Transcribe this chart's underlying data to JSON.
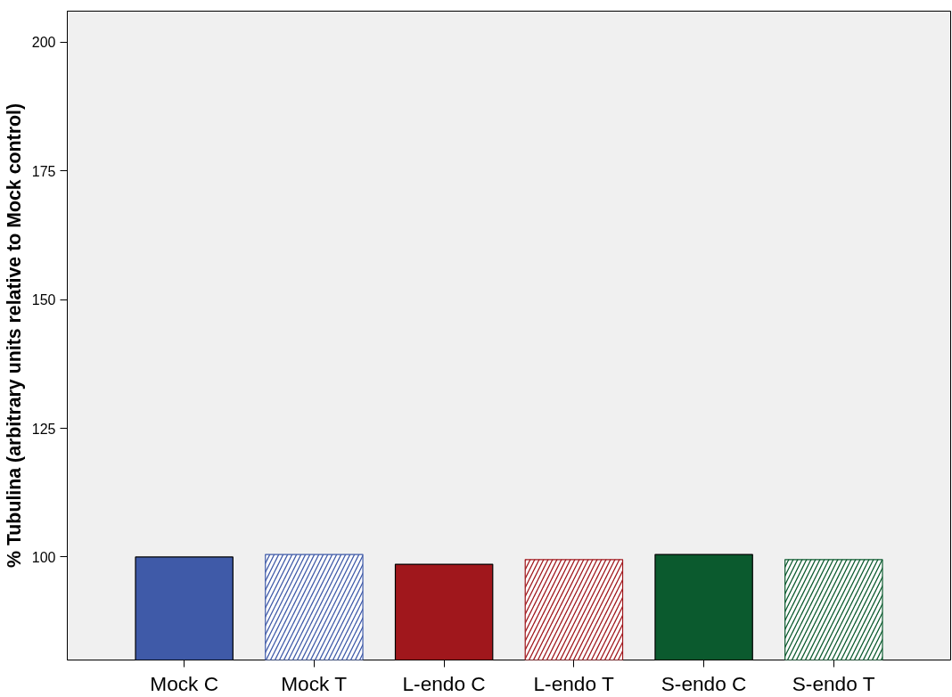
{
  "chart_data": {
    "type": "bar",
    "ylabel": "% Tubulina (arbitrary units relative to Mock control)",
    "categories": [
      "Mock C",
      "Mock T",
      "L-endo C",
      "L-endo T",
      "S-endo C",
      "S-endo T"
    ],
    "values": [
      100,
      100.5,
      98.6,
      99.5,
      100.5,
      99.5
    ],
    "colors": [
      "#3f5aa8",
      "#3f5aa8",
      "#a0171c",
      "#a0171c",
      "#0b5a2e",
      "#0b5a2e"
    ],
    "ylim": [
      80,
      206
    ],
    "yticks": [
      100,
      125,
      150,
      175,
      200
    ],
    "grid": false
  }
}
